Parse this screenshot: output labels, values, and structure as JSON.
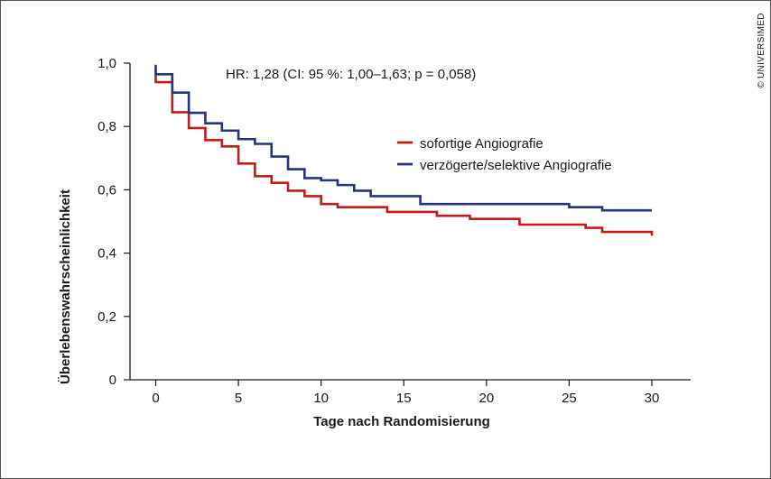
{
  "chart_data": {
    "type": "line",
    "step": true,
    "title": "",
    "xlabel": "Tage nach Randomisierung",
    "ylabel": "Überlebenswahrscheinlichkeit",
    "xlim": [
      -1,
      32
    ],
    "ylim": [
      0,
      1.0
    ],
    "x_ticks": [
      0,
      5,
      10,
      15,
      20,
      25,
      30
    ],
    "x_tick_labels": [
      "0",
      "5",
      "10",
      "15",
      "20",
      "25",
      "30"
    ],
    "y_ticks": [
      0,
      0.2,
      0.4,
      0.6,
      0.8,
      1.0
    ],
    "y_tick_labels": [
      "0",
      "0,2",
      "0,4",
      "0,6",
      "0,8",
      "1,0"
    ],
    "annotation": "HR: 1,28 (CI: 95 %: 1,00–1,63; p = 0,058)",
    "legend_position": "right",
    "series": [
      {
        "name": "sofortige Angiografie",
        "color": "#c41a1a",
        "points": [
          [
            0,
            0.98
          ],
          [
            0,
            0.94
          ],
          [
            1,
            0.94
          ],
          [
            1,
            0.845
          ],
          [
            2,
            0.845
          ],
          [
            2,
            0.795
          ],
          [
            3,
            0.795
          ],
          [
            3,
            0.757
          ],
          [
            4,
            0.757
          ],
          [
            4,
            0.737
          ],
          [
            5,
            0.737
          ],
          [
            5,
            0.683
          ],
          [
            6,
            0.683
          ],
          [
            6,
            0.643
          ],
          [
            7,
            0.643
          ],
          [
            7,
            0.622
          ],
          [
            8,
            0.622
          ],
          [
            8,
            0.597
          ],
          [
            9,
            0.597
          ],
          [
            9,
            0.58
          ],
          [
            10,
            0.58
          ],
          [
            10,
            0.555
          ],
          [
            11,
            0.555
          ],
          [
            11,
            0.545
          ],
          [
            14,
            0.545
          ],
          [
            14,
            0.53
          ],
          [
            17,
            0.53
          ],
          [
            17,
            0.518
          ],
          [
            19,
            0.518
          ],
          [
            19,
            0.508
          ],
          [
            22,
            0.508
          ],
          [
            22,
            0.49
          ],
          [
            26,
            0.49
          ],
          [
            26,
            0.48
          ],
          [
            27,
            0.48
          ],
          [
            27,
            0.467
          ],
          [
            30,
            0.467
          ],
          [
            30,
            0.455
          ]
        ]
      },
      {
        "name": "verzögerte/selektive Angiografie",
        "color": "#26357f",
        "points": [
          [
            0,
            0.995
          ],
          [
            0,
            0.965
          ],
          [
            1,
            0.965
          ],
          [
            1,
            0.907
          ],
          [
            2,
            0.907
          ],
          [
            2,
            0.843
          ],
          [
            3,
            0.843
          ],
          [
            3,
            0.81
          ],
          [
            4,
            0.81
          ],
          [
            4,
            0.787
          ],
          [
            5,
            0.787
          ],
          [
            5,
            0.76
          ],
          [
            6,
            0.76
          ],
          [
            6,
            0.745
          ],
          [
            7,
            0.745
          ],
          [
            7,
            0.705
          ],
          [
            8,
            0.705
          ],
          [
            8,
            0.665
          ],
          [
            9,
            0.665
          ],
          [
            9,
            0.637
          ],
          [
            10,
            0.637
          ],
          [
            10,
            0.63
          ],
          [
            11,
            0.63
          ],
          [
            11,
            0.615
          ],
          [
            12,
            0.615
          ],
          [
            12,
            0.597
          ],
          [
            13,
            0.597
          ],
          [
            13,
            0.58
          ],
          [
            16,
            0.58
          ],
          [
            16,
            0.555
          ],
          [
            25,
            0.555
          ],
          [
            25,
            0.545
          ],
          [
            27,
            0.545
          ],
          [
            27,
            0.535
          ],
          [
            30,
            0.535
          ]
        ]
      }
    ]
  },
  "credit": "© UNIVERSIMED"
}
